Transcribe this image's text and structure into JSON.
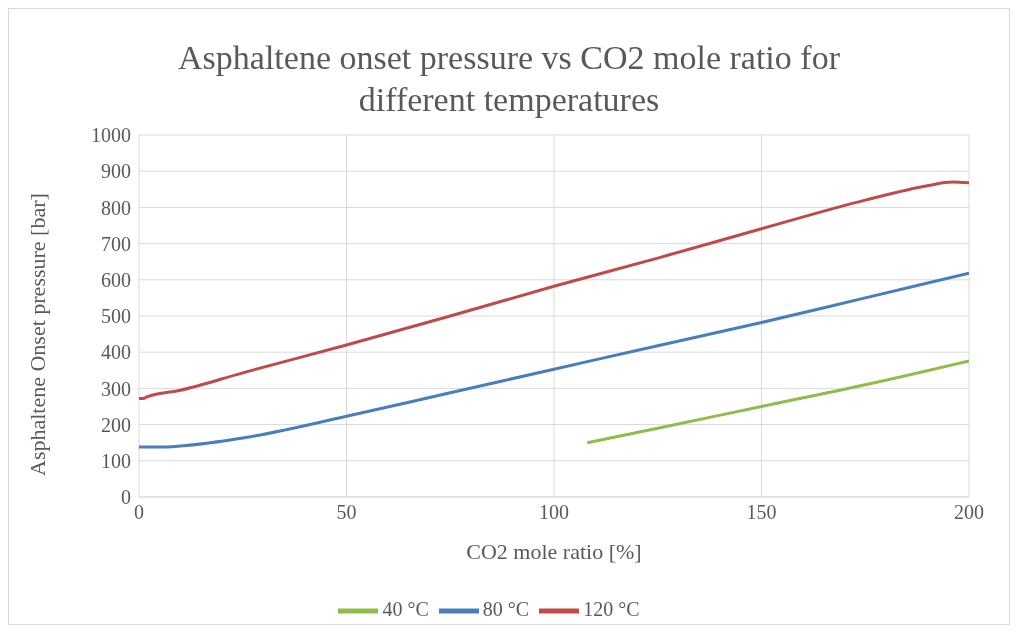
{
  "chart_data": {
    "type": "line",
    "title": "Asphaltene onset pressure vs CO2 mole ratio for different temperatures",
    "xlabel": "CO2 mole ratio [%]",
    "ylabel": "Asphaltene Onset pressure [bar]",
    "xlim": [
      0,
      200
    ],
    "xticks": [
      0,
      50,
      100,
      150,
      200
    ],
    "ylim": [
      0,
      1000
    ],
    "yticks": [
      0,
      100,
      200,
      300,
      400,
      500,
      600,
      700,
      800,
      900,
      1000
    ],
    "grid": true,
    "legend": "bottom",
    "marker": "none",
    "line_style": "solid",
    "series": [
      {
        "name": "40 °C",
        "color": "#8fbc4b",
        "x": [
          108,
          125,
          150,
          175,
          200
        ],
        "values": [
          150,
          190,
          250,
          310,
          376
        ]
      },
      {
        "name": "80 °C",
        "color": "#4a7ebb",
        "x": [
          0,
          5,
          10,
          25,
          50,
          75,
          100,
          125,
          150,
          175,
          200
        ],
        "values": [
          138,
          138,
          141,
          163,
          223,
          288,
          353,
          418,
          482,
          550,
          618
        ]
      },
      {
        "name": "120 °C",
        "color": "#be4b48",
        "x": [
          0,
          1,
          2,
          10,
          25,
          50,
          75,
          100,
          125,
          150,
          175,
          190,
          196,
          200
        ],
        "values": [
          272,
          272,
          277,
          295,
          343,
          420,
          500,
          582,
          660,
          741,
          820,
          860,
          870,
          868
        ]
      }
    ]
  }
}
